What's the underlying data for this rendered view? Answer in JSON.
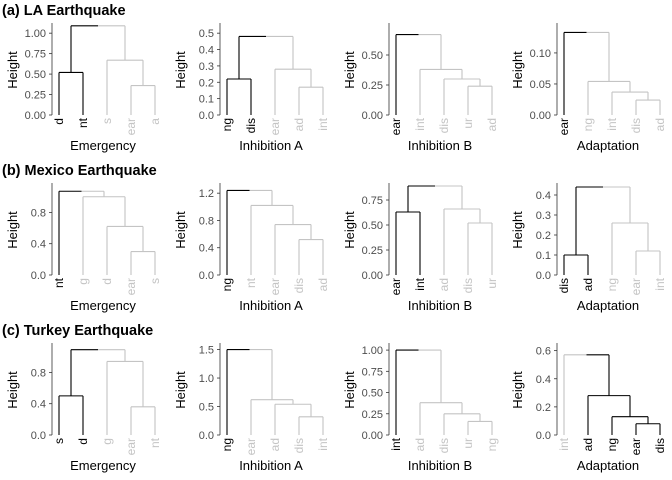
{
  "y_axis_title": "Height",
  "colors": {
    "highlight": "#000000",
    "muted": "#c4c4c4",
    "tick_text": "#4d4d4d",
    "axis_line": "#333333"
  },
  "chart_data": {
    "type": "dendrogram-grid",
    "rows": [
      {
        "title": "(a) LA Earthquake",
        "panels": [
          {
            "xlabel": "Emergency",
            "ylim": [
              0,
              1.1
            ],
            "yticks": [
              0.0,
              0.25,
              0.5,
              0.75,
              1.0
            ],
            "tick_decimals": 2,
            "leaves": [
              {
                "label": "d",
                "hi": true
              },
              {
                "label": "nt",
                "hi": true
              },
              {
                "label": "s",
                "hi": false
              },
              {
                "label": "ear",
                "hi": false
              },
              {
                "label": "a",
                "hi": false
              }
            ],
            "merges": [
              {
                "a": 3,
                "b": 4,
                "h": 0.36,
                "hi": false
              },
              {
                "a": 2,
                "b": 5,
                "h": 0.67,
                "hi": false
              },
              {
                "a": 0,
                "b": 1,
                "h": 0.52,
                "hi": true
              },
              {
                "a": 7,
                "b": 6,
                "h": 1.09,
                "hi": false
              }
            ],
            "root_hi_left": true
          },
          {
            "xlabel": "Inhibition A",
            "ylim": [
              0,
              0.55
            ],
            "yticks": [
              0.0,
              0.1,
              0.2,
              0.3,
              0.4,
              0.5
            ],
            "tick_decimals": 1,
            "leaves": [
              {
                "label": "ng",
                "hi": true
              },
              {
                "label": "dis",
                "hi": true
              },
              {
                "label": "ear",
                "hi": false
              },
              {
                "label": "ad",
                "hi": false
              },
              {
                "label": "int",
                "hi": false
              }
            ],
            "merges": [
              {
                "a": 3,
                "b": 4,
                "h": 0.17,
                "hi": false
              },
              {
                "a": 2,
                "b": 5,
                "h": 0.28,
                "hi": false
              },
              {
                "a": 0,
                "b": 1,
                "h": 0.22,
                "hi": true
              },
              {
                "a": 7,
                "b": 6,
                "h": 0.48,
                "hi": false
              }
            ],
            "root_hi_left": true
          },
          {
            "xlabel": "Inhibition B",
            "ylim": [
              0,
              0.75
            ],
            "yticks": [
              0.0,
              0.25,
              0.5
            ],
            "tick_decimals": 2,
            "leaves": [
              {
                "label": "ear",
                "hi": true
              },
              {
                "label": "int",
                "hi": false
              },
              {
                "label": "dis",
                "hi": false
              },
              {
                "label": "ur",
                "hi": false
              },
              {
                "label": "ad",
                "hi": false
              }
            ],
            "merges": [
              {
                "a": 3,
                "b": 4,
                "h": 0.24,
                "hi": false
              },
              {
                "a": 2,
                "b": 5,
                "h": 0.3,
                "hi": false
              },
              {
                "a": 1,
                "b": 6,
                "h": 0.38,
                "hi": false
              },
              {
                "a": 0,
                "b": 7,
                "h": 0.67,
                "hi": false
              }
            ],
            "root_hi_left": true
          },
          {
            "xlabel": "Adaptation",
            "ylim": [
              0,
              0.145
            ],
            "yticks": [
              0.0,
              0.05,
              0.1
            ],
            "tick_decimals": 2,
            "leaves": [
              {
                "label": "ear",
                "hi": true
              },
              {
                "label": "ng",
                "hi": false
              },
              {
                "label": "int",
                "hi": false
              },
              {
                "label": "dis",
                "hi": false
              },
              {
                "label": "ad",
                "hi": false
              }
            ],
            "merges": [
              {
                "a": 3,
                "b": 4,
                "h": 0.024,
                "hi": false
              },
              {
                "a": 2,
                "b": 5,
                "h": 0.037,
                "hi": false
              },
              {
                "a": 1,
                "b": 6,
                "h": 0.054,
                "hi": false
              },
              {
                "a": 0,
                "b": 7,
                "h": 0.133,
                "hi": false
              }
            ],
            "root_hi_left": true
          }
        ]
      },
      {
        "title": "(b) Mexico Earthquake",
        "panels": [
          {
            "xlabel": "Emergency",
            "ylim": [
              0,
              1.15
            ],
            "yticks": [
              0.0,
              0.4,
              0.8
            ],
            "tick_decimals": 1,
            "leaves": [
              {
                "label": "nt",
                "hi": true
              },
              {
                "label": "g",
                "hi": false
              },
              {
                "label": "d",
                "hi": false
              },
              {
                "label": "ear",
                "hi": false
              },
              {
                "label": "s",
                "hi": false
              }
            ],
            "merges": [
              {
                "a": 3,
                "b": 4,
                "h": 0.3,
                "hi": false
              },
              {
                "a": 2,
                "b": 5,
                "h": 0.62,
                "hi": false
              },
              {
                "a": 1,
                "b": 6,
                "h": 1.0,
                "hi": false
              },
              {
                "a": 0,
                "b": 7,
                "h": 1.07,
                "hi": false
              }
            ],
            "root_hi_left": true
          },
          {
            "xlabel": "Inhibition A",
            "ylim": [
              0,
              1.32
            ],
            "yticks": [
              0.0,
              0.4,
              0.8,
              1.2
            ],
            "tick_decimals": 1,
            "leaves": [
              {
                "label": "ng",
                "hi": true
              },
              {
                "label": "nt",
                "hi": false
              },
              {
                "label": "ear",
                "hi": false
              },
              {
                "label": "dis",
                "hi": false
              },
              {
                "label": "ad",
                "hi": false
              }
            ],
            "merges": [
              {
                "a": 3,
                "b": 4,
                "h": 0.52,
                "hi": false
              },
              {
                "a": 2,
                "b": 5,
                "h": 0.74,
                "hi": false
              },
              {
                "a": 1,
                "b": 6,
                "h": 1.02,
                "hi": false
              },
              {
                "a": 0,
                "b": 7,
                "h": 1.24,
                "hi": false
              }
            ],
            "root_hi_left": true
          },
          {
            "xlabel": "Inhibition B",
            "ylim": [
              0,
              0.9
            ],
            "yticks": [
              0.0,
              0.25,
              0.5,
              0.75
            ],
            "tick_decimals": 2,
            "leaves": [
              {
                "label": "ear",
                "hi": true
              },
              {
                "label": "int",
                "hi": true
              },
              {
                "label": "ad",
                "hi": false
              },
              {
                "label": "dis",
                "hi": false
              },
              {
                "label": "ur",
                "hi": false
              }
            ],
            "merges": [
              {
                "a": 3,
                "b": 4,
                "h": 0.52,
                "hi": false
              },
              {
                "a": 2,
                "b": 5,
                "h": 0.66,
                "hi": false
              },
              {
                "a": 0,
                "b": 1,
                "h": 0.63,
                "hi": true
              },
              {
                "a": 7,
                "b": 6,
                "h": 0.89,
                "hi": false
              }
            ],
            "root_hi_left": true
          },
          {
            "xlabel": "Adaptation",
            "ylim": [
              0,
              0.45
            ],
            "yticks": [
              0.0,
              0.1,
              0.2,
              0.3,
              0.4
            ],
            "tick_decimals": 1,
            "leaves": [
              {
                "label": "dis",
                "hi": true
              },
              {
                "label": "ad",
                "hi": true
              },
              {
                "label": "ng",
                "hi": false
              },
              {
                "label": "ear",
                "hi": false
              },
              {
                "label": "int",
                "hi": false
              }
            ],
            "merges": [
              {
                "a": 3,
                "b": 4,
                "h": 0.12,
                "hi": false
              },
              {
                "a": 2,
                "b": 5,
                "h": 0.26,
                "hi": false
              },
              {
                "a": 0,
                "b": 1,
                "h": 0.1,
                "hi": true
              },
              {
                "a": 7,
                "b": 6,
                "h": 0.44,
                "hi": false
              }
            ],
            "root_hi_left": true
          }
        ]
      },
      {
        "title": "(c) Turkey Earthquake",
        "panels": [
          {
            "xlabel": "Emergency",
            "ylim": [
              0,
              1.15
            ],
            "yticks": [
              0.0,
              0.4,
              0.8
            ],
            "tick_decimals": 1,
            "leaves": [
              {
                "label": "s",
                "hi": true
              },
              {
                "label": "d",
                "hi": true
              },
              {
                "label": "g",
                "hi": false
              },
              {
                "label": "ear",
                "hi": false
              },
              {
                "label": "nt",
                "hi": false
              }
            ],
            "merges": [
              {
                "a": 3,
                "b": 4,
                "h": 0.36,
                "hi": false
              },
              {
                "a": 2,
                "b": 5,
                "h": 0.94,
                "hi": false
              },
              {
                "a": 0,
                "b": 1,
                "h": 0.5,
                "hi": true
              },
              {
                "a": 7,
                "b": 6,
                "h": 1.09,
                "hi": false
              }
            ],
            "root_hi_left": true
          },
          {
            "xlabel": "Inhibition A",
            "ylim": [
              0,
              1.58
            ],
            "yticks": [
              0.0,
              0.5,
              1.0,
              1.5
            ],
            "tick_decimals": 1,
            "leaves": [
              {
                "label": "ng",
                "hi": true
              },
              {
                "label": "ear",
                "hi": false
              },
              {
                "label": "ad",
                "hi": false
              },
              {
                "label": "dis",
                "hi": false
              },
              {
                "label": "int",
                "hi": false
              }
            ],
            "merges": [
              {
                "a": 3,
                "b": 4,
                "h": 0.32,
                "hi": false
              },
              {
                "a": 2,
                "b": 5,
                "h": 0.54,
                "hi": false
              },
              {
                "a": 1,
                "b": 6,
                "h": 0.62,
                "hi": false
              },
              {
                "a": 0,
                "b": 7,
                "h": 1.5,
                "hi": false
              }
            ],
            "root_hi_left": true
          },
          {
            "xlabel": "Inhibition B",
            "ylim": [
              0,
              1.06
            ],
            "yticks": [
              0.0,
              0.25,
              0.5,
              0.75,
              1.0
            ],
            "tick_decimals": 2,
            "leaves": [
              {
                "label": "int",
                "hi": true
              },
              {
                "label": "ad",
                "hi": false
              },
              {
                "label": "dis",
                "hi": false
              },
              {
                "label": "ur",
                "hi": false
              },
              {
                "label": "ng",
                "hi": false
              }
            ],
            "merges": [
              {
                "a": 3,
                "b": 4,
                "h": 0.16,
                "hi": false
              },
              {
                "a": 2,
                "b": 5,
                "h": 0.25,
                "hi": false
              },
              {
                "a": 1,
                "b": 6,
                "h": 0.38,
                "hi": false
              },
              {
                "a": 0,
                "b": 7,
                "h": 1.0,
                "hi": false
              }
            ],
            "root_hi_left": true
          },
          {
            "xlabel": "Adaptation",
            "ylim": [
              0,
              0.64
            ],
            "yticks": [
              0.0,
              0.2,
              0.4,
              0.6
            ],
            "tick_decimals": 1,
            "leaves": [
              {
                "label": "int",
                "hi": false
              },
              {
                "label": "ad",
                "hi": true
              },
              {
                "label": "ng",
                "hi": true
              },
              {
                "label": "ear",
                "hi": true
              },
              {
                "label": "dis",
                "hi": true
              }
            ],
            "merges": [
              {
                "a": 3,
                "b": 4,
                "h": 0.08,
                "hi": true
              },
              {
                "a": 2,
                "b": 5,
                "h": 0.13,
                "hi": true
              },
              {
                "a": 1,
                "b": 6,
                "h": 0.28,
                "hi": true
              },
              {
                "a": 0,
                "b": 7,
                "h": 0.57,
                "hi": false
              }
            ],
            "root_hi_left": false,
            "root_hi_right": true
          }
        ]
      }
    ]
  }
}
